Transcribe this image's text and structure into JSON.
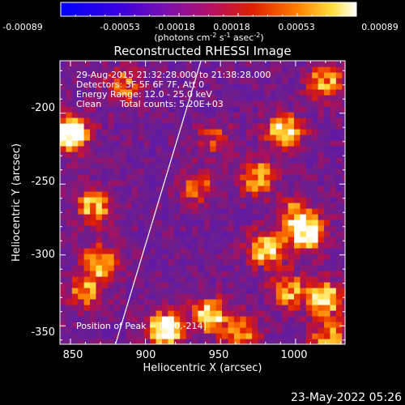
{
  "colorbar": {
    "ticks": [
      "-0.00089",
      "-0.00053",
      "-0.00018",
      "0.00018",
      "0.00053",
      "0.00089"
    ],
    "units_main": "(photons cm",
    "units_sup1": "-2",
    "units_mid1": " s",
    "units_sup2": "-1",
    "units_mid2": " asec",
    "units_sup3": "-2",
    "units_end": ")"
  },
  "chart_data": {
    "type": "heatmap",
    "title": "Reconstructed RHESSI Image",
    "xlabel": "Heliocentric X (arcsec)",
    "ylabel": "Heliocentric Y (arcsec)",
    "xlim": [
      843,
      1033
    ],
    "ylim": [
      -363,
      -163
    ],
    "xticks": [
      850,
      900,
      950,
      1000
    ],
    "yticks": [
      -200,
      -250,
      -300,
      -350
    ],
    "color_scale": {
      "min": -0.00089,
      "max": 0.00089,
      "colormap": "blue-purple-red-yellow-white"
    },
    "annotations": {
      "time_range": "29-Aug-2015 21:32:28.000 to 21:38:28.000",
      "detectors": "Detectors: 3F 5F 6F 7F, Att 0",
      "energy": "Energy Range: 12.0 - 25.0 keV",
      "algorithm": "Clean",
      "counts": "Total counts: 5.20E+03",
      "peak": "Position of Peak = [850,-214]"
    },
    "limb_line": {
      "x": [
        880,
        937
      ],
      "y": [
        -363,
        -163
      ]
    },
    "hot_spots": [
      {
        "x": 850,
        "y": -214,
        "level": 1.0
      },
      {
        "x": 913,
        "y": -352,
        "level": 0.9
      },
      {
        "x": 993,
        "y": -213,
        "level": 0.75
      },
      {
        "x": 1008,
        "y": -285,
        "level": 0.8
      },
      {
        "x": 980,
        "y": -295,
        "level": 0.7
      },
      {
        "x": 1020,
        "y": -330,
        "level": 0.7
      },
      {
        "x": 943,
        "y": -343,
        "level": 0.7
      },
      {
        "x": 975,
        "y": -245,
        "level": 0.6
      },
      {
        "x": 1020,
        "y": -178,
        "level": 0.6
      },
      {
        "x": 866,
        "y": -265,
        "level": 0.6
      },
      {
        "x": 870,
        "y": -305,
        "level": 0.65
      },
      {
        "x": 1022,
        "y": -358,
        "level": 0.55
      },
      {
        "x": 995,
        "y": -325,
        "level": 0.55
      },
      {
        "x": 860,
        "y": -325,
        "level": 0.5
      },
      {
        "x": 885,
        "y": -180,
        "level": 0.45
      },
      {
        "x": 965,
        "y": -355,
        "level": 0.5
      },
      {
        "x": 935,
        "y": -252,
        "level": 0.4
      },
      {
        "x": 1000,
        "y": -270,
        "level": 0.45
      },
      {
        "x": 945,
        "y": -218,
        "level": 0.35
      }
    ]
  },
  "footer": {
    "timestamp": "23-May-2022 05:26"
  }
}
